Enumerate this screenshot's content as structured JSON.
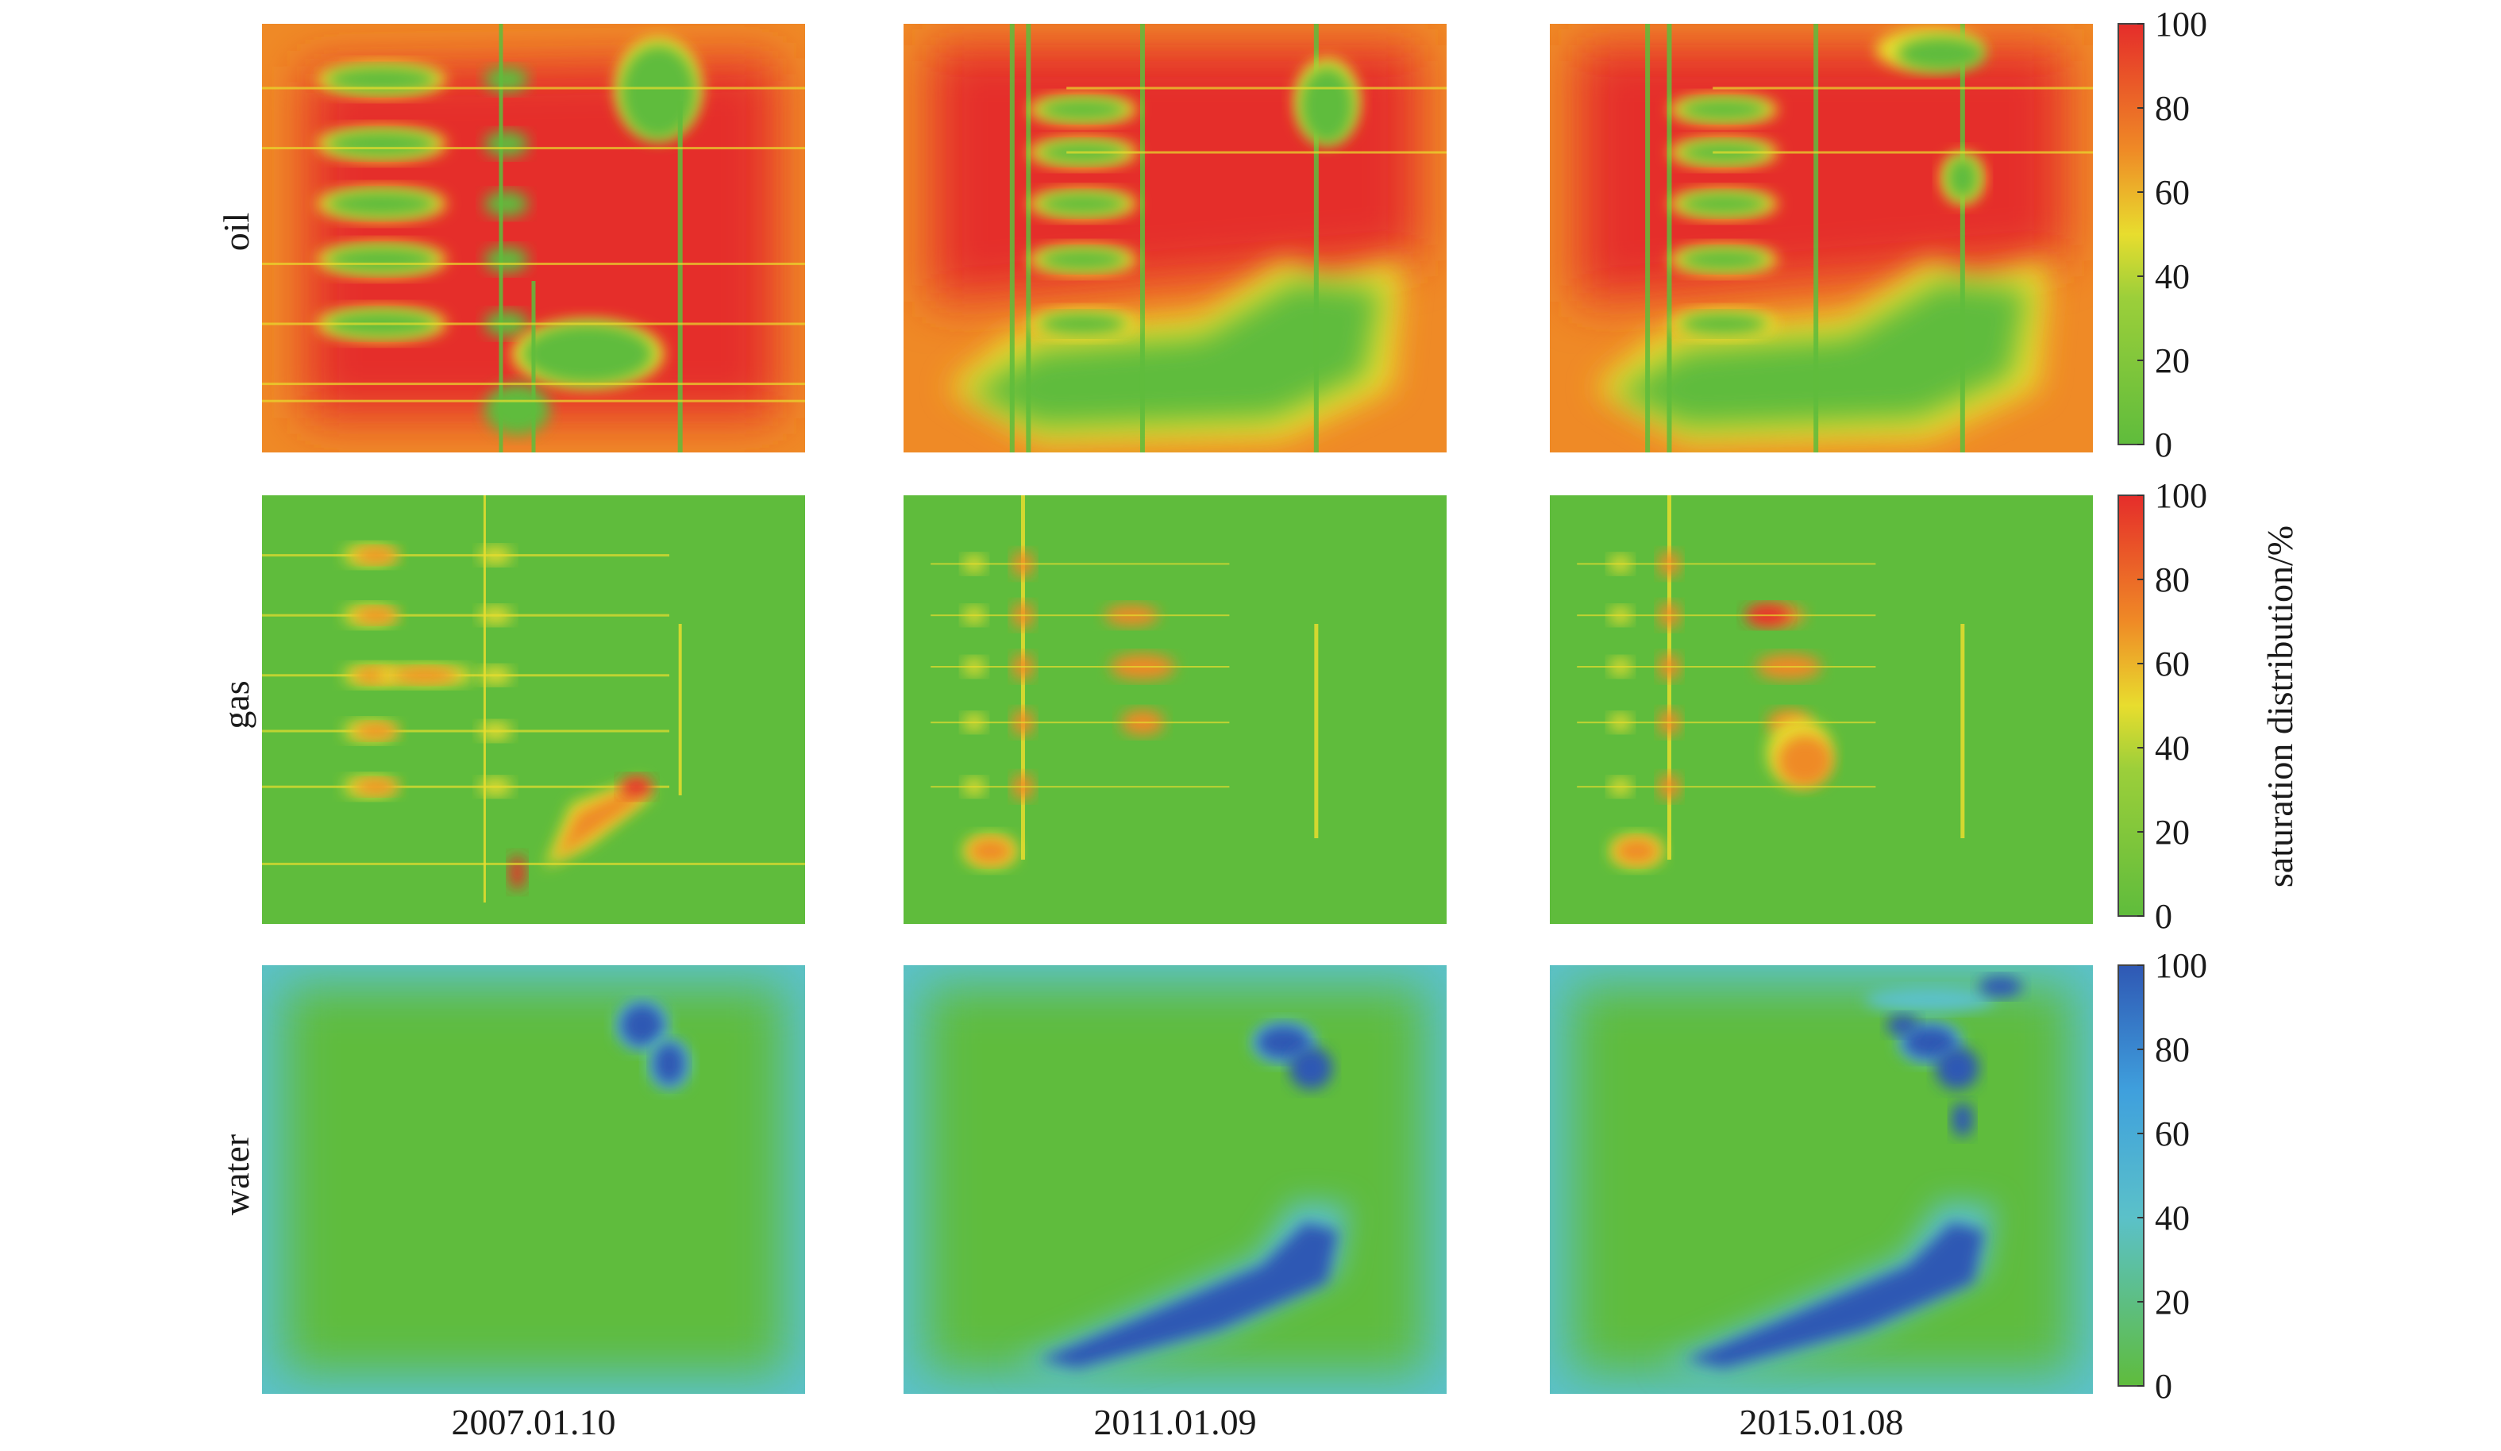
{
  "chart_data": {
    "type": "heatmap",
    "rows": [
      {
        "label": "oil",
        "colormap": "green-yellow-orange-red"
      },
      {
        "label": "gas",
        "colormap": "green-yellow-orange-red"
      },
      {
        "label": "water",
        "colormap": "green-cyan-blue"
      }
    ],
    "columns": [
      "2007.01.10",
      "2011.01.09",
      "2015.01.08"
    ],
    "colorbar": {
      "title": "saturation distribution/%",
      "range": [
        0,
        100
      ],
      "ticks": [
        "100",
        "80",
        "60",
        "40",
        "20",
        "0"
      ]
    },
    "colors": {
      "red": "#e52d2a",
      "orange": "#ef8a26",
      "yellow": "#e8dd2e",
      "green": "#5fbc3c",
      "cyan": "#5bc1c9",
      "blue": "#2f58b4"
    }
  }
}
